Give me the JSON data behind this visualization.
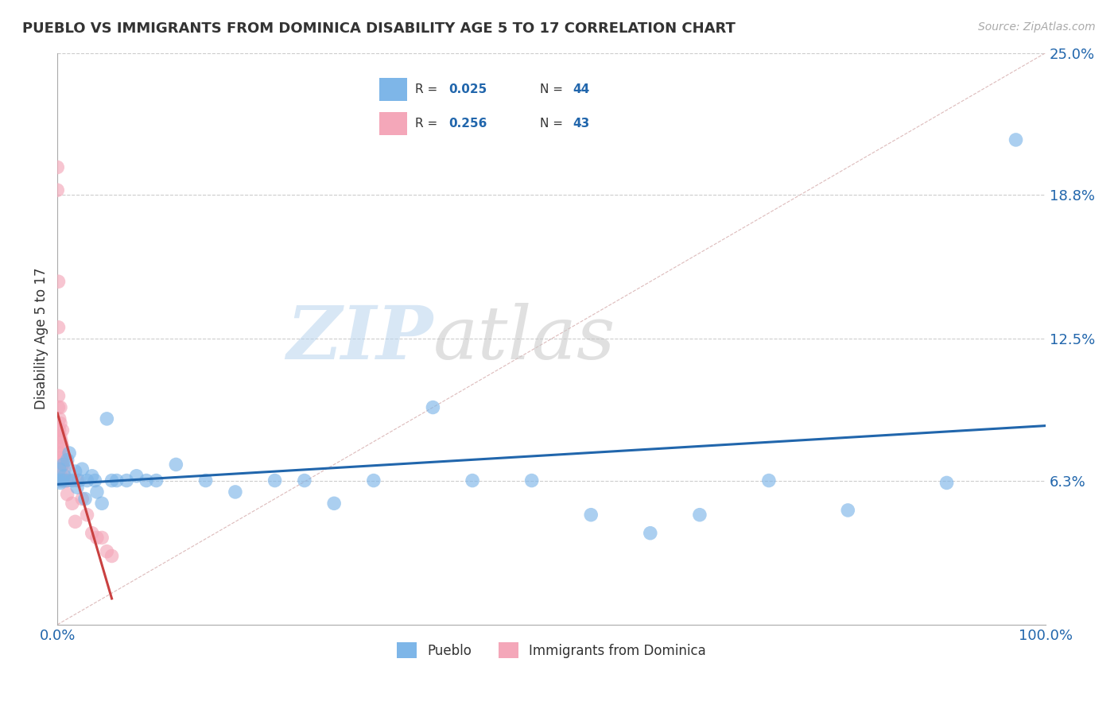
{
  "title": "PUEBLO VS IMMIGRANTS FROM DOMINICA DISABILITY AGE 5 TO 17 CORRELATION CHART",
  "source": "Source: ZipAtlas.com",
  "ylabel": "Disability Age 5 to 17",
  "xmin": 0.0,
  "xmax": 1.0,
  "ymin": 0.0,
  "ymax": 0.25,
  "yticks": [
    0.0,
    0.063,
    0.125,
    0.188,
    0.25
  ],
  "ytick_labels": [
    "",
    "6.3%",
    "12.5%",
    "18.8%",
    "25.0%"
  ],
  "xtick_labels": [
    "0.0%",
    "100.0%"
  ],
  "pueblo_color": "#7EB6E8",
  "immigrant_color": "#F4A7B9",
  "pueblo_line_color": "#2166ac",
  "immigrant_line_color": "#c94040",
  "legend_r_pueblo": "R = 0.025",
  "legend_n_pueblo": "N = 44",
  "legend_r_immigrant": "R = 0.256",
  "legend_n_immigrant": "N = 43",
  "pueblo_x": [
    0.001,
    0.002,
    0.003,
    0.005,
    0.006,
    0.007,
    0.009,
    0.01,
    0.012,
    0.015,
    0.018,
    0.02,
    0.022,
    0.025,
    0.028,
    0.03,
    0.035,
    0.038,
    0.04,
    0.045,
    0.05,
    0.055,
    0.06,
    0.07,
    0.08,
    0.09,
    0.1,
    0.12,
    0.15,
    0.18,
    0.22,
    0.25,
    0.28,
    0.32,
    0.38,
    0.42,
    0.48,
    0.54,
    0.6,
    0.65,
    0.72,
    0.8,
    0.9,
    0.97
  ],
  "pueblo_y": [
    0.063,
    0.068,
    0.062,
    0.063,
    0.07,
    0.065,
    0.063,
    0.072,
    0.075,
    0.063,
    0.067,
    0.06,
    0.063,
    0.068,
    0.055,
    0.063,
    0.065,
    0.063,
    0.058,
    0.053,
    0.09,
    0.063,
    0.063,
    0.063,
    0.065,
    0.063,
    0.063,
    0.07,
    0.063,
    0.058,
    0.063,
    0.063,
    0.053,
    0.063,
    0.095,
    0.063,
    0.063,
    0.048,
    0.04,
    0.048,
    0.063,
    0.05,
    0.062,
    0.212
  ],
  "immigrant_x": [
    0.0,
    0.0,
    0.001,
    0.001,
    0.001,
    0.001,
    0.001,
    0.002,
    0.002,
    0.002,
    0.002,
    0.002,
    0.003,
    0.003,
    0.003,
    0.003,
    0.004,
    0.004,
    0.004,
    0.004,
    0.005,
    0.005,
    0.005,
    0.005,
    0.006,
    0.006,
    0.007,
    0.007,
    0.008,
    0.009,
    0.01,
    0.01,
    0.012,
    0.015,
    0.018,
    0.02,
    0.025,
    0.03,
    0.035,
    0.04,
    0.045,
    0.05,
    0.055
  ],
  "immigrant_y": [
    0.19,
    0.2,
    0.15,
    0.13,
    0.1,
    0.095,
    0.085,
    0.09,
    0.085,
    0.08,
    0.075,
    0.063,
    0.095,
    0.088,
    0.082,
    0.075,
    0.08,
    0.073,
    0.068,
    0.063,
    0.085,
    0.078,
    0.07,
    0.063,
    0.072,
    0.063,
    0.068,
    0.063,
    0.063,
    0.063,
    0.063,
    0.057,
    0.063,
    0.053,
    0.045,
    0.063,
    0.055,
    0.048,
    0.04,
    0.038,
    0.038,
    0.032,
    0.03
  ],
  "watermark_zip": "ZIP",
  "watermark_atlas": "atlas",
  "background_color": "#ffffff",
  "grid_color": "#cccccc",
  "diagonal_color": "#ddbbbb"
}
